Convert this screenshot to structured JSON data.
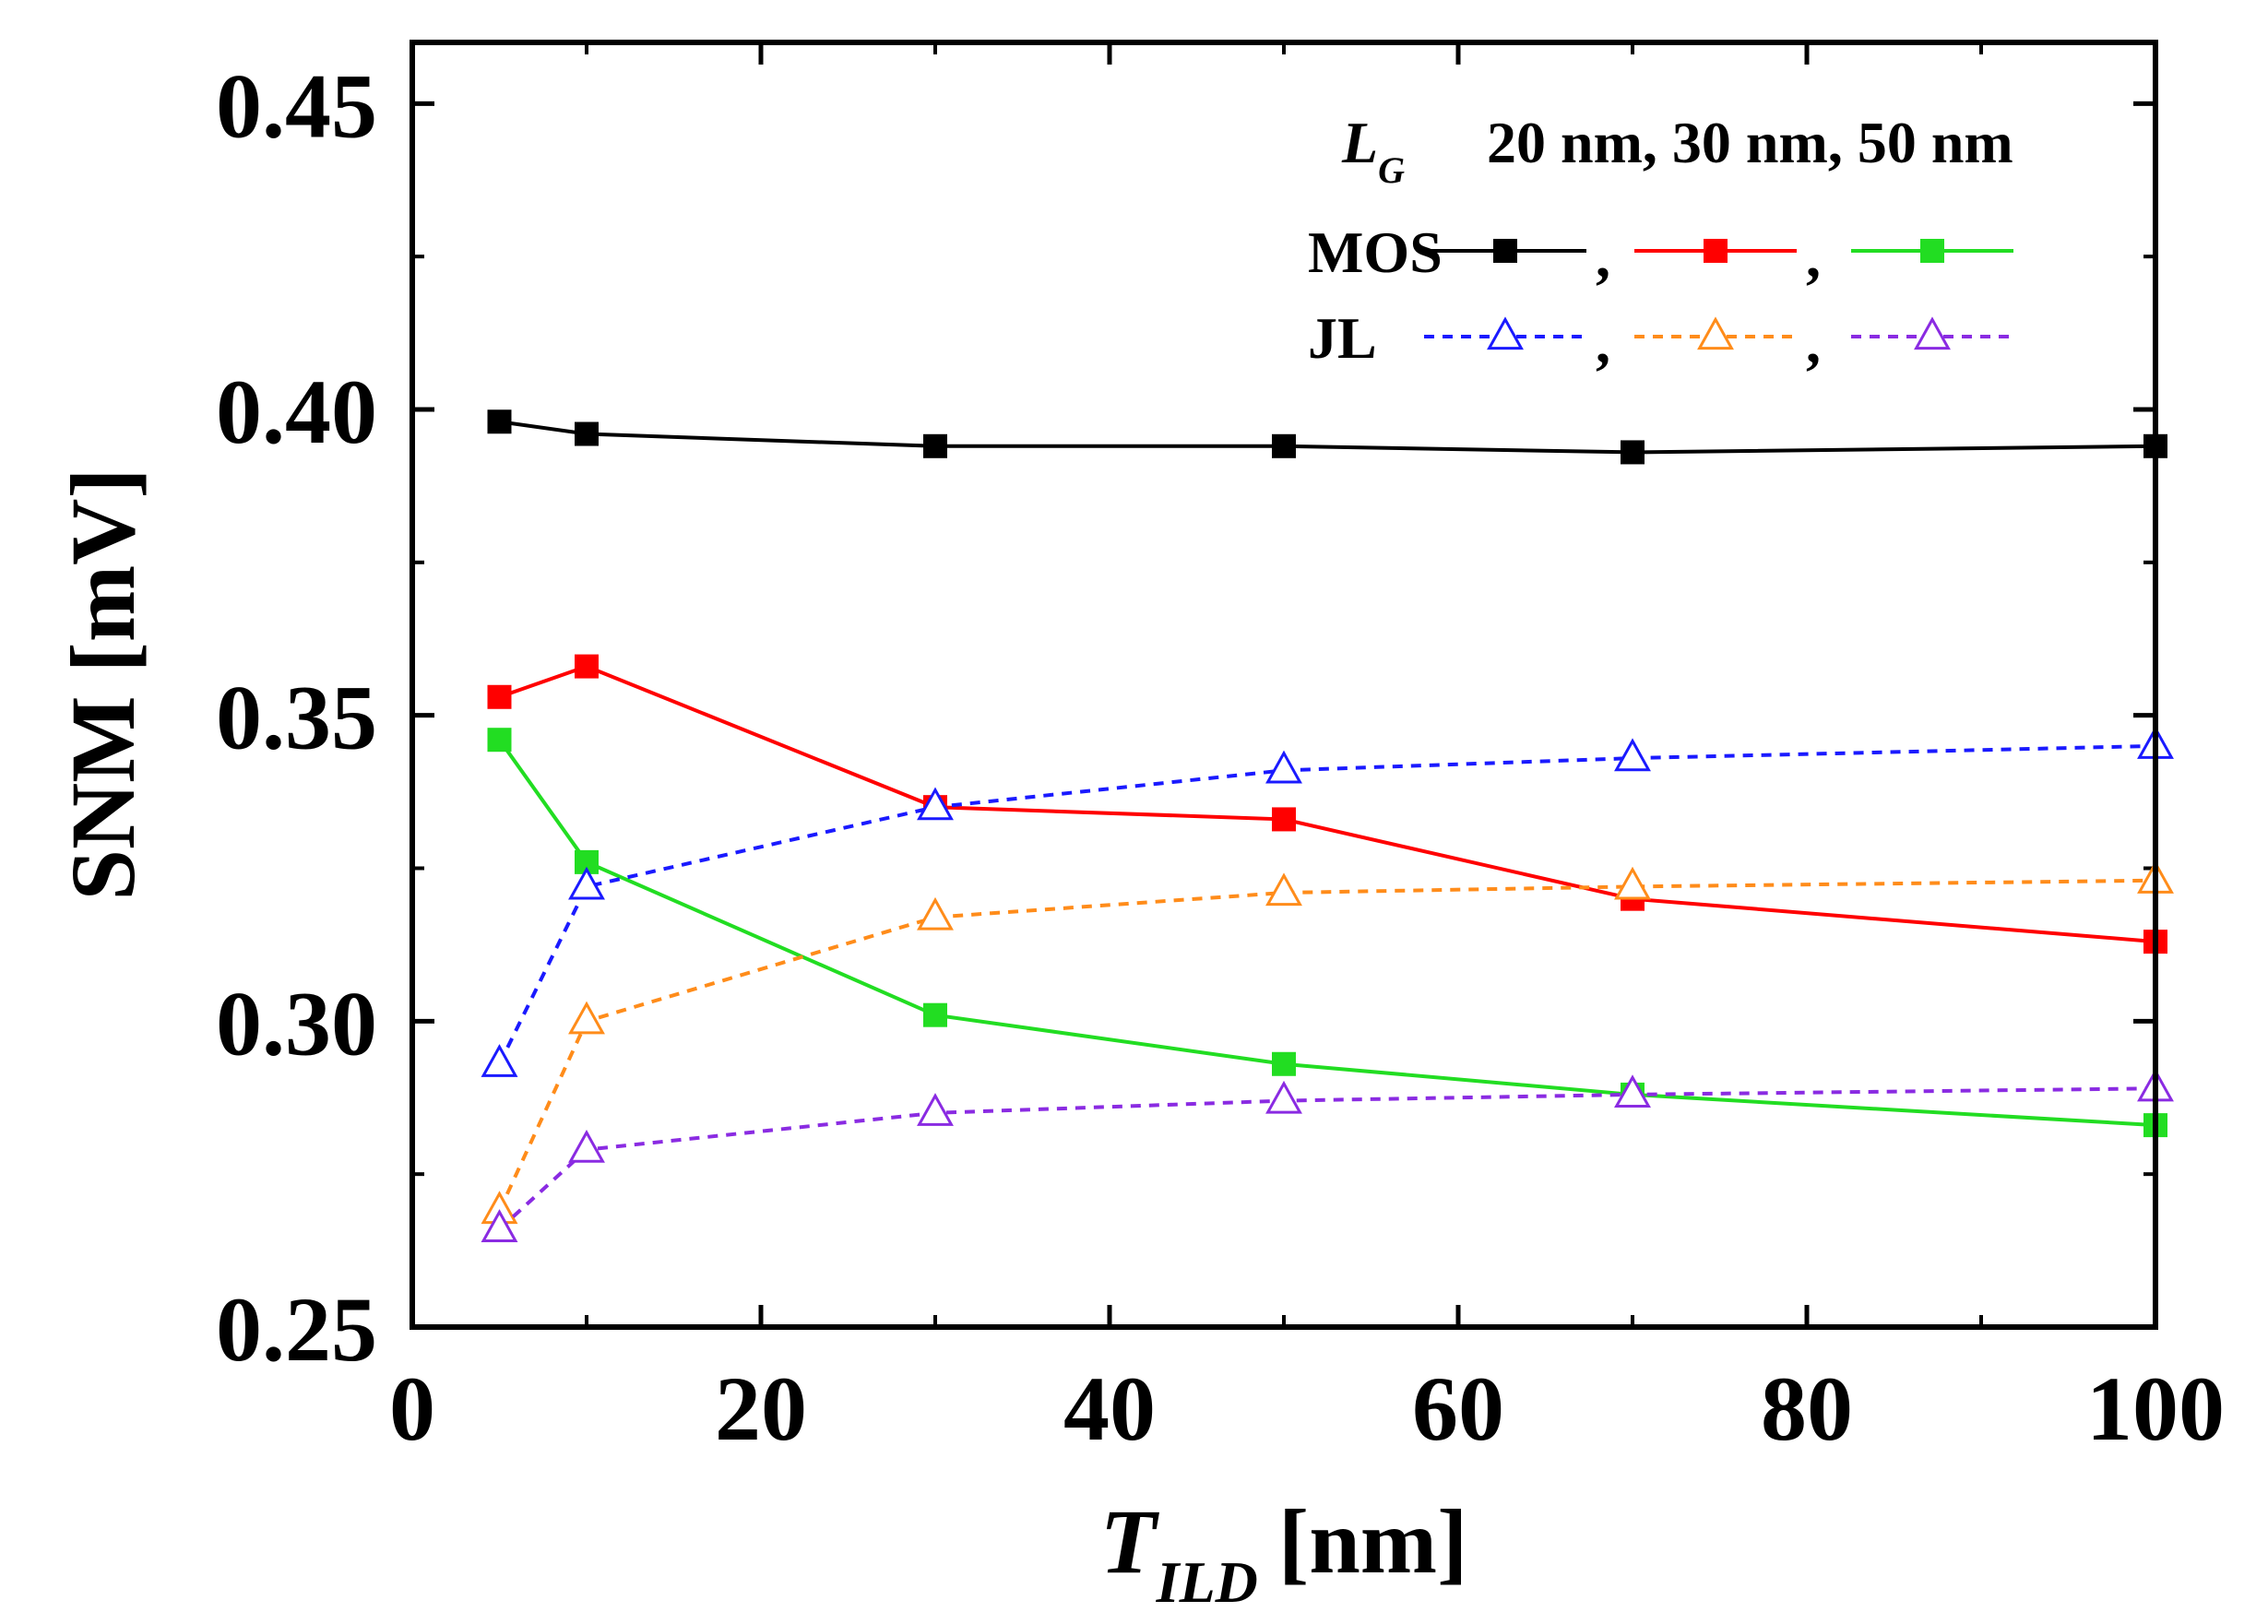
{
  "chart_data": {
    "type": "line",
    "title": "",
    "xlabel": {
      "main": "T",
      "sub": "ILD",
      "unit": "[nm]"
    },
    "ylabel": "SNM [mV]",
    "xlim": [
      0,
      100
    ],
    "ylim": [
      0.25,
      0.46
    ],
    "x_ticks": [
      0,
      20,
      40,
      60,
      80,
      100
    ],
    "x_tick_labels": [
      "0",
      "20",
      "40",
      "60",
      "80",
      "100"
    ],
    "y_ticks": [
      0.25,
      0.3,
      0.35,
      0.4,
      0.45
    ],
    "y_tick_labels": [
      "0.25",
      "0.30",
      "0.35",
      "0.40",
      "0.45"
    ],
    "grid": false,
    "legend": {
      "placement": "top-right",
      "header_symbol": "L",
      "header_sub": "G",
      "header_values": "20 nm, 30 nm, 50 nm",
      "rows": [
        {
          "label": "MOS",
          "marker": "square",
          "style": "solid",
          "colors": [
            "#000000",
            "#ff0000",
            "#22dd22"
          ]
        },
        {
          "label": "JL",
          "marker": "triangle",
          "style": "dotted",
          "colors": [
            "#1a1aff",
            "#ff8c1a",
            "#8a2be2"
          ]
        }
      ],
      "separator": ","
    },
    "x": [
      5,
      10,
      30,
      50,
      70,
      100
    ],
    "series": [
      {
        "name": "MOS 20 nm",
        "color": "#000000",
        "marker": "square",
        "style": "solid",
        "values": [
          0.398,
          0.396,
          0.394,
          0.394,
          0.393,
          0.394
        ]
      },
      {
        "name": "MOS 30 nm",
        "color": "#ff0000",
        "marker": "square",
        "style": "solid",
        "values": [
          0.353,
          0.358,
          0.335,
          0.333,
          0.32,
          0.313
        ]
      },
      {
        "name": "MOS 50 nm",
        "color": "#22dd22",
        "marker": "square",
        "style": "solid",
        "values": [
          0.346,
          0.326,
          0.301,
          0.293,
          0.288,
          0.283
        ]
      },
      {
        "name": "JL 20 nm",
        "color": "#1a1aff",
        "marker": "triangle",
        "style": "dotted",
        "values": [
          0.293,
          0.322,
          0.335,
          0.341,
          0.343,
          0.345
        ]
      },
      {
        "name": "JL 30 nm",
        "color": "#ff8c1a",
        "marker": "triangle",
        "style": "dotted",
        "values": [
          0.269,
          0.3,
          0.317,
          0.321,
          0.322,
          0.323
        ]
      },
      {
        "name": "JL 50 nm",
        "color": "#8a2be2",
        "marker": "triangle",
        "style": "dotted",
        "values": [
          0.266,
          0.279,
          0.285,
          0.287,
          0.288,
          0.289
        ]
      }
    ]
  }
}
